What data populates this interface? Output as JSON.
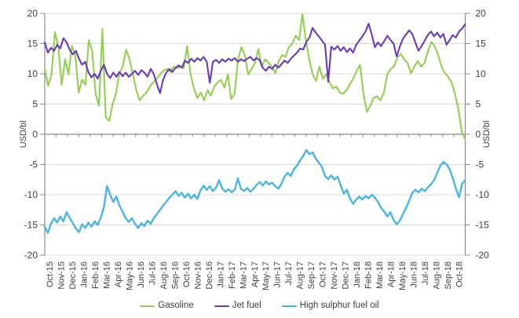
{
  "axis_title_left": "USD/bl",
  "axis_title_right": "USD/bl",
  "chart_data": {
    "type": "line",
    "title": "",
    "xlabel": "",
    "ylabel": "USD/bl",
    "ylim": [
      -20,
      20
    ],
    "y_ticks": [
      20,
      15,
      10,
      5,
      0,
      -5,
      -10,
      -15,
      -20
    ],
    "grid": true,
    "legend_position": "bottom",
    "x_tick_labels": [
      "Oct-15",
      "Nov-15",
      "Dec-15",
      "Jan-16",
      "Feb-16",
      "Mar-16",
      "Apr-16",
      "May-16",
      "Jun-16",
      "Jul-16",
      "Aug-16",
      "Sep-16",
      "Oct-16",
      "Nov-16",
      "Dec-16",
      "Jan-17",
      "Feb-17",
      "Mar-17",
      "Apr-17",
      "May-17",
      "Jun-17",
      "Jul-17",
      "Aug-17",
      "Sep-17",
      "Oct-17",
      "Nov-17",
      "Dec-17",
      "Jan-18",
      "Feb-18",
      "Mar-18",
      "Apr-18",
      "May-18",
      "Jun-18",
      "Jul-18",
      "Aug-18",
      "Sep-18",
      "Oct-18"
    ],
    "series": [
      {
        "name": "Gasoline",
        "color": "#92D050",
        "values": [
          10.9,
          8.0,
          9.9,
          16.9,
          14.4,
          8.2,
          12.4,
          9.9,
          14.6,
          13.1,
          6.9,
          9.0,
          8.2,
          15.6,
          13.7,
          6.7,
          4.7,
          17.4,
          2.8,
          2.2,
          5.0,
          6.7,
          10.1,
          11.2,
          14.0,
          12.4,
          9.9,
          7.3,
          5.6,
          6.4,
          6.9,
          7.9,
          8.6,
          9.2,
          9.9,
          10.5,
          10.8,
          10.3,
          11.2,
          10.9,
          11.2,
          10.9,
          14.6,
          9.9,
          7.6,
          6.0,
          6.9,
          5.6,
          7.3,
          6.4,
          7.9,
          8.6,
          9.0,
          7.7,
          9.9,
          5.8,
          6.7,
          12.4,
          14.4,
          13.1,
          9.9,
          10.8,
          11.8,
          14.1,
          11.2,
          12.4,
          11.8,
          11.2,
          10.1,
          12.1,
          13.1,
          12.8,
          14.4,
          15.0,
          16.3,
          15.6,
          19.9,
          15.6,
          12.4,
          9.9,
          8.8,
          11.2,
          9.2,
          9.9,
          8.6,
          7.6,
          7.9,
          6.9,
          6.7,
          7.3,
          8.3,
          9.2,
          10.5,
          11.5,
          6.7,
          3.7,
          4.7,
          6.0,
          6.3,
          5.6,
          6.9,
          9.9,
          10.8,
          11.2,
          12.7,
          13.3,
          12.4,
          11.8,
          10.1,
          11.2,
          12.1,
          11.2,
          11.8,
          13.7,
          15.3,
          14.6,
          13.1,
          11.2,
          10.1,
          9.5,
          8.6,
          6.7,
          4.1,
          0.3,
          -0.8
        ]
      },
      {
        "name": "Jet fuel",
        "color": "#6B3AB8",
        "values": [
          15.2,
          13.5,
          14.3,
          13.8,
          14.8,
          14.2,
          15.9,
          15.2,
          14.0,
          13.2,
          13.8,
          12.5,
          11.5,
          12.0,
          10.3,
          9.4,
          10.0,
          9.2,
          10.5,
          11.5,
          10.0,
          9.3,
          10.2,
          9.5,
          10.3,
          9.6,
          10.2,
          9.5,
          10.0,
          10.5,
          9.8,
          10.6,
          10.2,
          9.5,
          10.8,
          10.0,
          8.3,
          6.8,
          9.0,
          10.2,
          10.8,
          10.3,
          11.0,
          11.4,
          11.0,
          12.2,
          11.8,
          12.5,
          12.0,
          12.6,
          12.2,
          12.8,
          12.0,
          8.5,
          12.0,
          12.3,
          11.8,
          12.4,
          12.0,
          12.5,
          12.2,
          12.6,
          12.0,
          12.4,
          12.1,
          12.5,
          12.8,
          12.2,
          12.6,
          12.3,
          11.0,
          10.5,
          11.2,
          10.8,
          11.5,
          11.0,
          11.6,
          12.2,
          11.8,
          12.5,
          13.0,
          13.5,
          14.2,
          14.0,
          15.3,
          16.0,
          17.6,
          16.8,
          16.2,
          15.5,
          14.8,
          8.7,
          14.5,
          14.0,
          14.6,
          13.8,
          14.4,
          13.6,
          14.2,
          13.5,
          14.8,
          15.5,
          16.2,
          17.0,
          18.3,
          16.5,
          14.4,
          15.2,
          14.6,
          15.4,
          16.3,
          15.6,
          15.0,
          12.9,
          14.5,
          15.8,
          16.5,
          17.2,
          16.6,
          15.2,
          13.8,
          14.6,
          15.5,
          16.4,
          17.0,
          16.2,
          16.8,
          16.0,
          16.6,
          14.8,
          15.6,
          16.4,
          16.0,
          17.0,
          17.5,
          18.2
        ]
      },
      {
        "name": "High sulphur fuel oil",
        "color": "#47B5E8",
        "values": [
          -15.3,
          -16.3,
          -14.8,
          -13.9,
          -14.6,
          -13.6,
          -14.4,
          -12.9,
          -13.8,
          -14.7,
          -15.6,
          -16.2,
          -14.9,
          -15.5,
          -14.6,
          -15.3,
          -14.4,
          -15.0,
          -13.8,
          -12.0,
          -8.6,
          -10.0,
          -11.2,
          -10.3,
          -11.8,
          -12.8,
          -13.9,
          -14.5,
          -13.9,
          -14.8,
          -15.5,
          -14.7,
          -15.2,
          -14.3,
          -14.8,
          -13.9,
          -13.2,
          -12.5,
          -11.8,
          -11.2,
          -10.5,
          -10.0,
          -9.4,
          -10.2,
          -9.7,
          -10.5,
          -9.8,
          -10.6,
          -10.0,
          -10.7,
          -9.3,
          -8.5,
          -9.2,
          -8.6,
          -9.4,
          -8.8,
          -7.6,
          -9.0,
          -9.5,
          -9.1,
          -9.6,
          -9.2,
          -7.3,
          -9.0,
          -9.4,
          -8.9,
          -9.5,
          -9.0,
          -8.4,
          -7.9,
          -8.5,
          -7.8,
          -8.3,
          -8.0,
          -8.6,
          -9.0,
          -8.2,
          -7.0,
          -6.4,
          -6.9,
          -5.8,
          -5.2,
          -4.3,
          -3.6,
          -2.6,
          -3.3,
          -3.0,
          -4.0,
          -4.7,
          -5.4,
          -6.9,
          -7.4,
          -6.8,
          -7.5,
          -7.0,
          -8.4,
          -9.8,
          -9.2,
          -10.6,
          -11.5,
          -10.8,
          -10.3,
          -10.8,
          -10.2,
          -10.6,
          -10.0,
          -10.5,
          -11.2,
          -12.2,
          -12.8,
          -13.6,
          -12.9,
          -14.2,
          -14.9,
          -14.3,
          -13.2,
          -12.2,
          -11.0,
          -9.7,
          -9.2,
          -9.6,
          -9.0,
          -9.4,
          -8.8,
          -8.3,
          -7.6,
          -6.4,
          -5.2,
          -4.6,
          -5.0,
          -5.8,
          -7.2,
          -9.0,
          -10.4,
          -8.2,
          -7.6
        ]
      }
    ],
    "style": {
      "grid_color": "#D9D9D9",
      "axis_color": "#8C8C8C",
      "tick_label_color": "#3F3F3F"
    }
  }
}
